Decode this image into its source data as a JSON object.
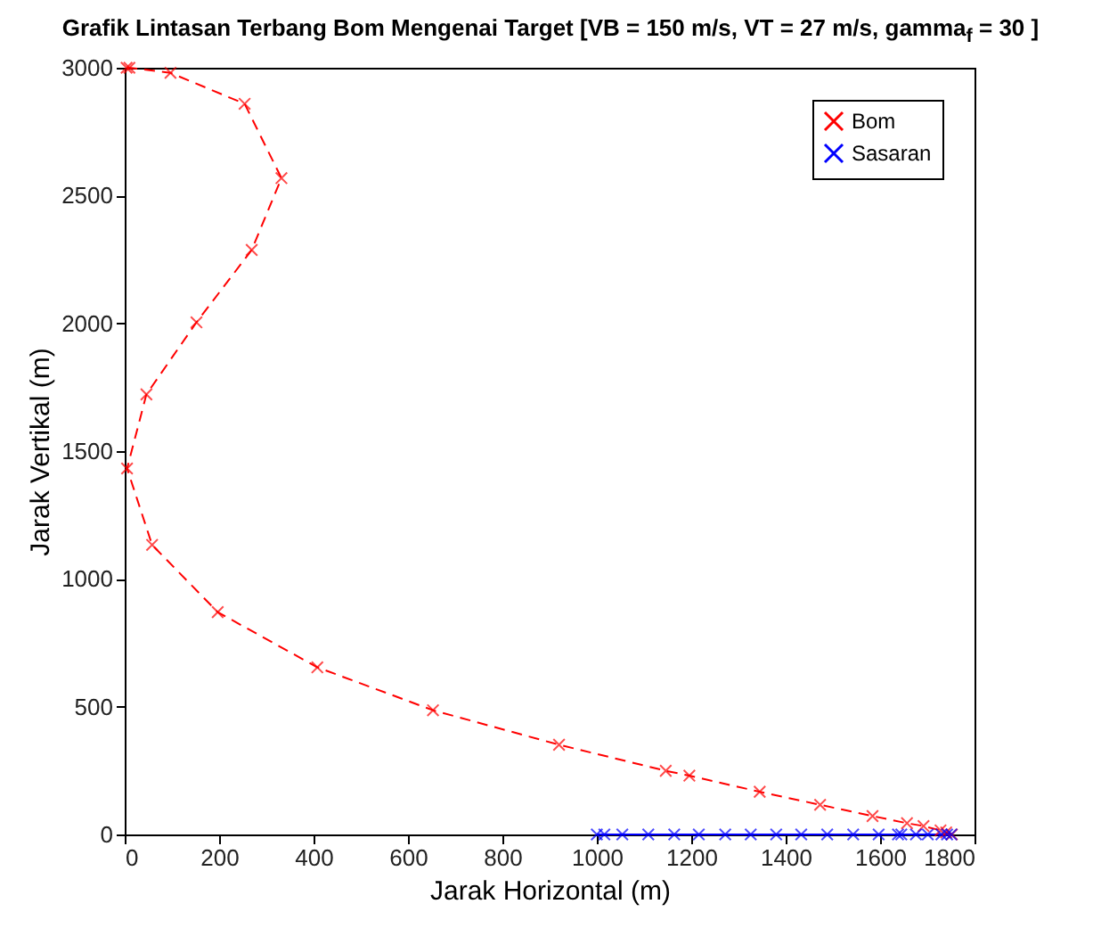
{
  "chart_data": {
    "type": "line",
    "title": "Grafik Lintasan Terbang Bom Mengenai Target [VB = 150 m/s, VT = 27 m/s, gamma$_{f}$ = 30 ]",
    "xlabel": "Jarak Horizontal (m)",
    "ylabel": "Jarak Vertikal (m)",
    "xlim": [
      0,
      1800
    ],
    "xticks": [
      0,
      200,
      400,
      600,
      800,
      1000,
      1200,
      1400,
      1600,
      1800
    ],
    "ylim": [
      0,
      3000
    ],
    "yticks": [
      0,
      500,
      1000,
      1500,
      2000,
      2500,
      3000
    ],
    "legend": "top right",
    "marker": "cross",
    "grid": false,
    "series": [
      {
        "name": "Bom",
        "color": "#ff0000",
        "line_style": "dashed",
        "x": [
          4,
          10,
          97,
          254,
          332,
          269,
          152,
          46,
          5,
          58,
          197,
          408,
          653,
          920,
          1146,
          1196,
          1345,
          1473,
          1584,
          1657,
          1692,
          1728,
          1740,
          1752
        ],
        "values": [
          3000,
          3000,
          2980,
          2859,
          2568,
          2287,
          2004,
          1722,
          1432,
          1133,
          870,
          654,
          486,
          351,
          249,
          230,
          167,
          116,
          72,
          44,
          33,
          16,
          8,
          0
        ]
      },
      {
        "name": "Sasaran",
        "color": "#0000ff",
        "line_style": "solid",
        "x": [
          1000,
          1016,
          1054,
          1109,
          1164,
          1216,
          1272,
          1326,
          1380,
          1433,
          1488,
          1543,
          1597,
          1638,
          1645,
          1676,
          1701,
          1730,
          1742,
          1751
        ],
        "values": [
          0,
          0,
          0,
          0,
          0,
          0,
          0,
          0,
          0,
          0,
          0,
          0,
          0,
          0,
          0,
          0,
          0,
          0,
          0,
          0
        ]
      }
    ]
  }
}
